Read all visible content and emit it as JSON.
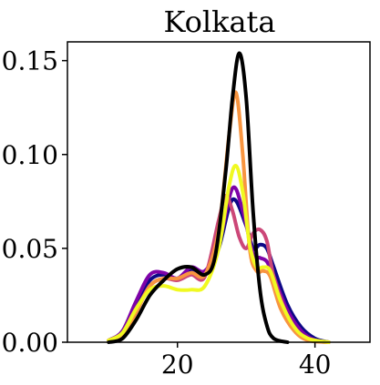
{
  "chart_data": {
    "type": "line",
    "title": "Kolkata",
    "xlabel": "",
    "ylabel": "",
    "xlim": [
      4,
      48
    ],
    "ylim": [
      0,
      0.16
    ],
    "xticks": [
      20,
      40
    ],
    "yticks": [
      0.0,
      0.05,
      0.1,
      0.15
    ],
    "ytick_labels": [
      "0.00",
      "0.05",
      "0.10",
      "0.15"
    ],
    "grid": false,
    "legend": "none",
    "series": [
      {
        "color": "#0d0887",
        "points": [
          [
            10,
            0.001
          ],
          [
            12,
            0.005
          ],
          [
            14,
            0.02
          ],
          [
            16,
            0.033
          ],
          [
            18,
            0.036
          ],
          [
            20,
            0.034
          ],
          [
            22,
            0.038
          ],
          [
            24,
            0.037
          ],
          [
            26,
            0.05
          ],
          [
            28,
            0.076
          ],
          [
            30,
            0.062
          ],
          [
            31,
            0.05
          ],
          [
            32,
            0.052
          ],
          [
            33,
            0.05
          ],
          [
            34,
            0.04
          ],
          [
            36,
            0.02
          ],
          [
            38,
            0.008
          ],
          [
            40,
            0.002
          ],
          [
            42,
            0.0
          ]
        ]
      },
      {
        "color": "#7e03a8",
        "points": [
          [
            10,
            0.001
          ],
          [
            12,
            0.006
          ],
          [
            14,
            0.022
          ],
          [
            16,
            0.036
          ],
          [
            18,
            0.037
          ],
          [
            20,
            0.034
          ],
          [
            22,
            0.04
          ],
          [
            24,
            0.038
          ],
          [
            26,
            0.052
          ],
          [
            28,
            0.082
          ],
          [
            29.5,
            0.07
          ],
          [
            31,
            0.047
          ],
          [
            32,
            0.045
          ],
          [
            33,
            0.043
          ],
          [
            34,
            0.035
          ],
          [
            36,
            0.017
          ],
          [
            38,
            0.006
          ],
          [
            40,
            0.001
          ],
          [
            42,
            0.0
          ]
        ]
      },
      {
        "color": "#cc4778",
        "points": [
          [
            10,
            0.001
          ],
          [
            12,
            0.004
          ],
          [
            14,
            0.017
          ],
          [
            16,
            0.03
          ],
          [
            18,
            0.034
          ],
          [
            20,
            0.033
          ],
          [
            22,
            0.036
          ],
          [
            24,
            0.035
          ],
          [
            26,
            0.065
          ],
          [
            27,
            0.078
          ],
          [
            28,
            0.07
          ],
          [
            29,
            0.056
          ],
          [
            30,
            0.05
          ],
          [
            31,
            0.058
          ],
          [
            32,
            0.06
          ],
          [
            33,
            0.054
          ],
          [
            34,
            0.035
          ],
          [
            36,
            0.014
          ],
          [
            38,
            0.004
          ],
          [
            40,
            0.001
          ],
          [
            42,
            0.0
          ]
        ]
      },
      {
        "color": "#f89540",
        "points": [
          [
            10,
            0.001
          ],
          [
            12,
            0.004
          ],
          [
            14,
            0.016
          ],
          [
            16,
            0.03
          ],
          [
            18,
            0.034
          ],
          [
            20,
            0.034
          ],
          [
            22,
            0.037
          ],
          [
            24,
            0.036
          ],
          [
            26,
            0.06
          ],
          [
            27.5,
            0.11
          ],
          [
            28.5,
            0.133
          ],
          [
            29.5,
            0.1
          ],
          [
            30.5,
            0.05
          ],
          [
            31.5,
            0.038
          ],
          [
            32.5,
            0.038
          ],
          [
            33.5,
            0.035
          ],
          [
            35,
            0.018
          ],
          [
            37,
            0.006
          ],
          [
            39,
            0.001
          ],
          [
            42,
            0.0
          ]
        ]
      },
      {
        "color": "#f0f921",
        "points": [
          [
            10,
            0.001
          ],
          [
            12,
            0.005
          ],
          [
            14,
            0.018
          ],
          [
            16,
            0.028
          ],
          [
            18,
            0.03
          ],
          [
            20,
            0.028
          ],
          [
            22,
            0.028
          ],
          [
            24,
            0.03
          ],
          [
            26,
            0.05
          ],
          [
            27.5,
            0.083
          ],
          [
            28.5,
            0.094
          ],
          [
            29.5,
            0.08
          ],
          [
            30.5,
            0.052
          ],
          [
            31.5,
            0.04
          ],
          [
            32.5,
            0.04
          ],
          [
            33.5,
            0.038
          ],
          [
            35,
            0.022
          ],
          [
            37,
            0.008
          ],
          [
            39,
            0.002
          ],
          [
            42,
            0.0
          ]
        ]
      },
      {
        "color": "#000000",
        "points": [
          [
            10,
            0.0
          ],
          [
            12,
            0.002
          ],
          [
            14,
            0.012
          ],
          [
            16,
            0.025
          ],
          [
            18,
            0.033
          ],
          [
            20,
            0.039
          ],
          [
            22,
            0.04
          ],
          [
            24,
            0.036
          ],
          [
            25.5,
            0.046
          ],
          [
            27,
            0.09
          ],
          [
            28,
            0.13
          ],
          [
            29,
            0.154
          ],
          [
            30,
            0.13
          ],
          [
            31,
            0.07
          ],
          [
            32,
            0.028
          ],
          [
            33,
            0.009
          ],
          [
            34,
            0.002
          ],
          [
            36,
            0.0
          ]
        ]
      }
    ]
  }
}
